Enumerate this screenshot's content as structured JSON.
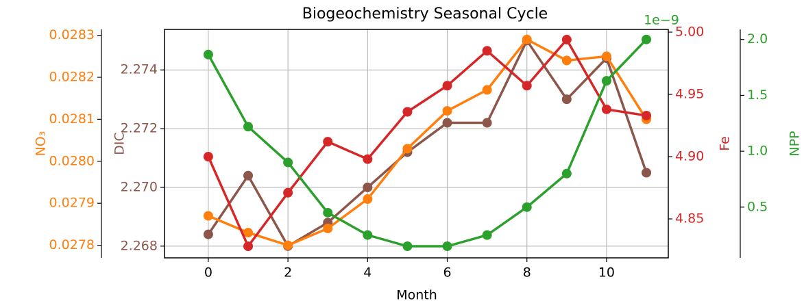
{
  "chart_data": {
    "type": "line",
    "title": "Biogeochemistry Seasonal Cycle",
    "xlabel": "Month",
    "x": [
      0,
      1,
      2,
      3,
      4,
      5,
      6,
      7,
      8,
      9,
      10,
      11
    ],
    "xlim": [
      -1.1,
      11.55
    ],
    "xticks": [
      0,
      2,
      4,
      6,
      8,
      10
    ],
    "grid": true,
    "series": [
      {
        "name": "DIC",
        "label": "DIC",
        "color": "#8c564b",
        "values": [
          2.2684,
          2.2704,
          2.268,
          2.2688,
          2.27,
          2.2712,
          2.2722,
          2.2722,
          2.275,
          2.273,
          2.2744,
          2.2705
        ],
        "ylim": [
          2.2676,
          2.27538
        ],
        "yticks": [
          2.268,
          {
            "value": 2.27,
            "label": "2.270"
          },
          2.272,
          2.274
        ]
      },
      {
        "name": "NO₃",
        "label": "NO₃",
        "color": "#ff7f0e",
        "values": [
          0.02787,
          0.02783,
          0.0278,
          0.02784,
          0.02791,
          0.02803,
          0.02812,
          0.02817,
          0.02829,
          0.02824,
          0.02825,
          0.0281
        ],
        "ylim": [
          0.02777,
          0.028314
        ],
        "yticks": [
          0.0278,
          0.0279,
          {
            "value": 0.028,
            "label": "0.0280"
          },
          0.0281,
          0.0282,
          0.0283
        ]
      },
      {
        "name": "Fe",
        "label": "Fe",
        "color": "#d62728",
        "values": [
          4.9,
          4.828,
          4.871,
          4.912,
          4.898,
          4.936,
          4.957,
          4.985,
          4.957,
          4.994,
          4.938,
          4.933
        ],
        "ylim": [
          4.8187,
          5.0022
        ],
        "yticks": [
          4.85,
          {
            "value": 4.9,
            "label": "4.90"
          },
          4.95,
          {
            "value": 5,
            "label": "5.00"
          }
        ]
      },
      {
        "name": "NPP",
        "label": "NPP",
        "color": "#2ca02c",
        "offset_label": "1e−9",
        "values": [
          1.865,
          1.22,
          0.9,
          0.45,
          0.25,
          0.15,
          0.15,
          0.25,
          0.5,
          0.8,
          1.63,
          2.0
        ],
        "ylim": [
          0.046,
          2.09
        ],
        "yticks": [
          0.5,
          {
            "value": 1,
            "label": "1.0"
          },
          1.5,
          {
            "value": 2,
            "label": "2.0"
          }
        ]
      }
    ]
  }
}
